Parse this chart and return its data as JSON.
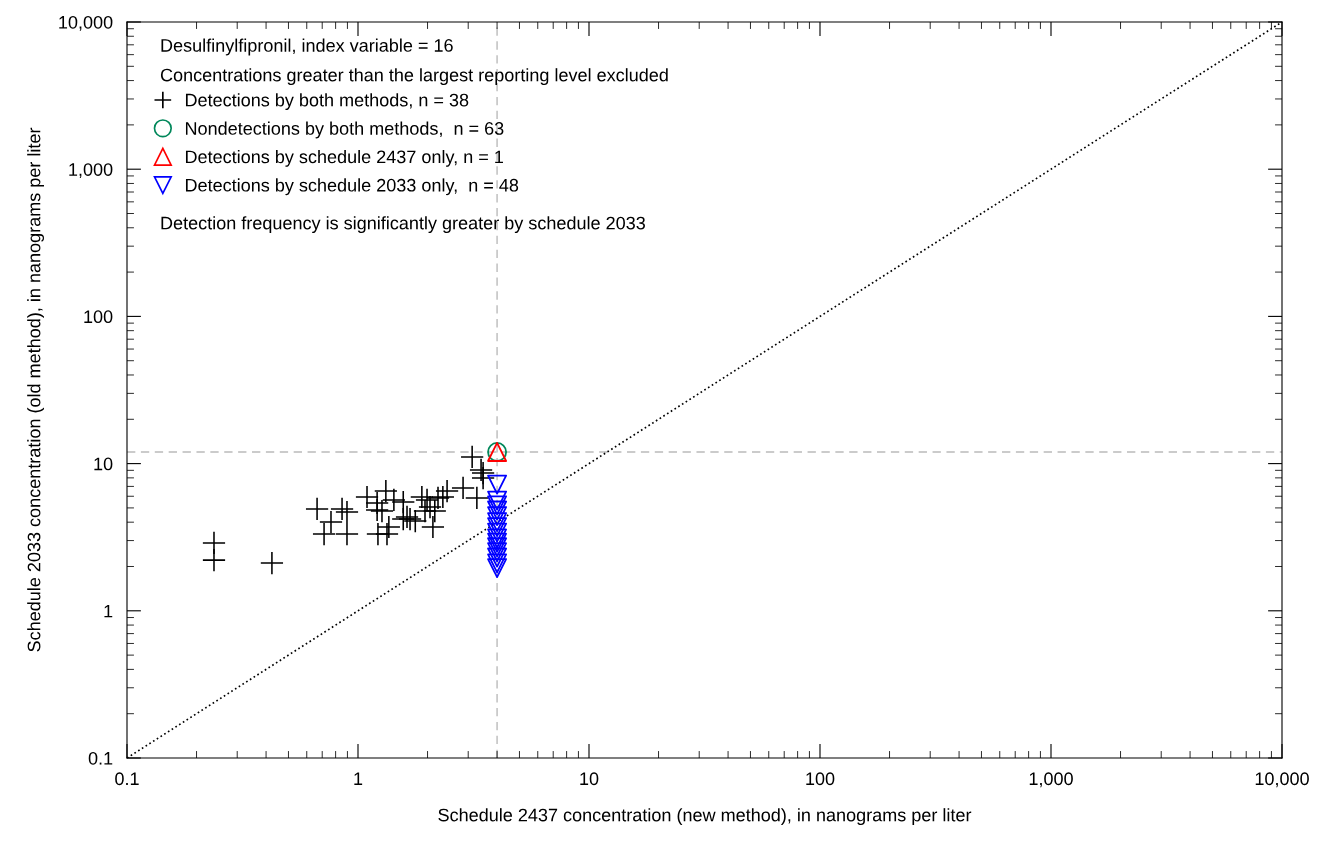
{
  "chart_data": {
    "type": "scatter",
    "xlabel": "Schedule 2437 concentration (new method), in nanograms per liter",
    "ylabel": "Schedule 2033 concentration (old method), in nanograms per liter",
    "annotations": [
      "Desulfinylfipronil, index variable = 16",
      "Concentrations greater than the largest reporting level excluded",
      "Detection frequency is significantly greater by schedule 2033"
    ],
    "log": "xy",
    "grid": false,
    "legend": "top left",
    "xlim": [
      0.1,
      10000
    ],
    "ylim": [
      0.1,
      10000
    ],
    "xticks": [
      0.1,
      1,
      10,
      100,
      {
        "value": 1000,
        "label": "1,000"
      },
      {
        "value": 10000,
        "label": "10,000"
      }
    ],
    "yticks": [
      0.1,
      1,
      10,
      100,
      {
        "value": 1000,
        "label": "1,000"
      },
      {
        "value": 10000,
        "label": "10,000"
      }
    ],
    "ref_lines": [
      {
        "axis": "x",
        "value": 4,
        "color": "#bbbbbb",
        "line_style": "dashed"
      },
      {
        "axis": "y",
        "value": 12,
        "color": "#bbbbbb",
        "line_style": "dashed"
      }
    ],
    "series": [
      {
        "type": "line",
        "color": "#000000",
        "line_style": "dotted",
        "marker": "none",
        "x": [
          0.1,
          10000
        ],
        "values": [
          0.1,
          10000
        ]
      },
      {
        "name": "Detections by both methods, n = 38",
        "color": "#000000",
        "marker": "cross",
        "x": [
          0.238,
          0.238,
          0.424,
          0.665,
          0.764,
          0.713,
          0.853,
          0.896,
          0.896,
          1.094,
          1.21,
          1.27,
          1.22,
          1.335,
          1.32,
          1.36,
          1.43,
          1.57,
          1.57,
          1.68,
          1.77,
          1.89,
          1.95,
          2.05,
          2.15,
          2.11,
          2.22,
          2.33,
          2.43,
          2.85,
          3.12,
          3.27,
          3.48,
          3.48,
          3.41,
          1.63,
          1.99,
          1.21
        ],
        "values": [
          2.89,
          2.21,
          2.11,
          4.92,
          4.01,
          3.32,
          4.92,
          4.69,
          3.32,
          5.93,
          4.84,
          4.76,
          3.32,
          3.32,
          6.51,
          3.71,
          5.66,
          5.48,
          4.2,
          4.2,
          4.07,
          5.93,
          4.76,
          5.07,
          4.76,
          3.71,
          5.84,
          5.93,
          6.51,
          6.83,
          11.1,
          5.84,
          8.63,
          7.98,
          9.05,
          4.34,
          5.66,
          5.4
        ]
      },
      {
        "name": "Nondetections by both methods,  n = 63",
        "color": "#00875a",
        "marker": "circle",
        "x": [
          4
        ],
        "values": [
          12
        ]
      },
      {
        "name": "Detections by schedule 2437 only, n = 1",
        "color": "#ff0000",
        "marker": "triangle",
        "x": [
          4
        ],
        "values": [
          12
        ]
      },
      {
        "name": "Detections by schedule 2033 only,  n = 48",
        "color": "#0000ff",
        "marker": "triangle_down",
        "x": [
          4,
          4,
          4,
          4,
          4,
          4,
          4,
          4,
          4,
          4,
          4,
          4,
          4,
          4,
          4
        ],
        "values": [
          7.2,
          5.6,
          5.2,
          4.8,
          4.4,
          4.0,
          3.7,
          3.4,
          3.1,
          2.9,
          2.7,
          2.5,
          2.3,
          2.1,
          1.95
        ]
      }
    ]
  }
}
